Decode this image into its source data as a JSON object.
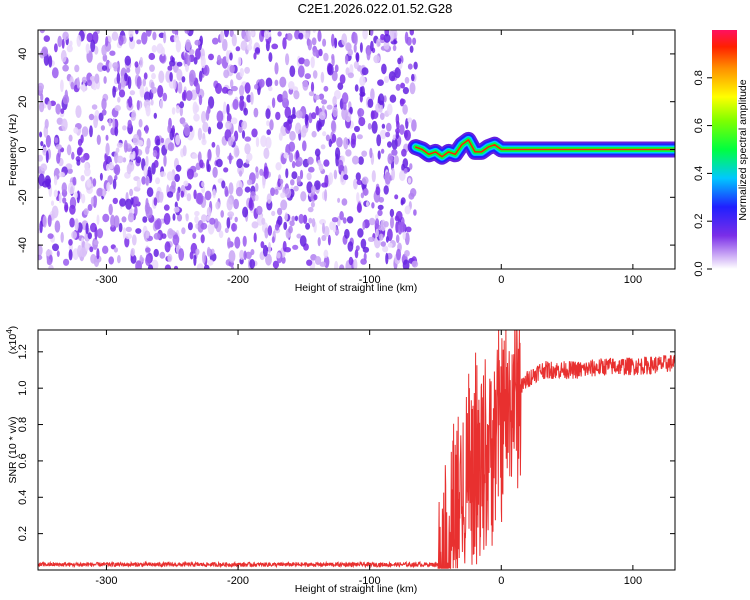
{
  "title": "C2E1.2026.022.01.52.G28",
  "chart_data": [
    {
      "type": "heatmap",
      "title": "",
      "xlabel": "Height of straight line (km)",
      "ylabel": "Frequency (Hz)",
      "xlim": [
        -352,
        132
      ],
      "ylim": [
        -50,
        50
      ],
      "xticks": [
        -300,
        -200,
        -100,
        0,
        100
      ],
      "yticks": [
        -40,
        -20,
        0,
        20,
        40
      ],
      "noise_region_x": [
        -352,
        -65
      ],
      "signal_trace": {
        "x": [
          -65,
          -60,
          -55,
          -50,
          -45,
          -40,
          -35,
          -30,
          -25,
          -20,
          -15,
          -10,
          -5,
          0,
          5,
          20,
          50,
          80,
          110,
          132
        ],
        "y": [
          1,
          0,
          -2,
          -1,
          -3,
          -1,
          -2,
          2,
          4,
          -1,
          -1,
          1,
          2,
          0,
          0,
          0,
          0,
          0,
          0,
          0
        ]
      },
      "colorbar": {
        "label": "Normalized spectral amplitude",
        "range": [
          0,
          1
        ],
        "ticks": [
          0.0,
          0.2,
          0.4,
          0.6,
          0.8
        ]
      }
    },
    {
      "type": "line",
      "title": "",
      "xlabel": "Height of straight line (km)",
      "ylabel": "SNR (10 * v/v)",
      "y_multiplier": "(x10",
      "y_multiplier_exp": "4",
      "y_multiplier_close": ")",
      "xlim": [
        -352,
        132
      ],
      "ylim": [
        0,
        1.32
      ],
      "xticks": [
        -300,
        -200,
        -100,
        0,
        100
      ],
      "yticks": [
        0.2,
        0.4,
        0.6,
        0.8,
        1.0,
        1.2
      ],
      "line_color": "#e8302f",
      "series": {
        "x": [
          -352,
          -300,
          -200,
          -100,
          -50,
          -45,
          -40,
          -35,
          -30,
          -25,
          -20,
          -15,
          -10,
          -5,
          0,
          5,
          10,
          20,
          30,
          40,
          60,
          80,
          100,
          120,
          132
        ],
        "y": [
          0.03,
          0.03,
          0.03,
          0.03,
          0.03,
          0.05,
          0.12,
          0.3,
          0.45,
          0.55,
          0.62,
          0.58,
          0.65,
          0.75,
          0.8,
          0.85,
          0.95,
          1.05,
          1.1,
          1.1,
          1.1,
          1.12,
          1.12,
          1.13,
          1.14
        ]
      }
    }
  ],
  "colors": {
    "noise": "#7a2ee8",
    "line": "#e8302f"
  }
}
